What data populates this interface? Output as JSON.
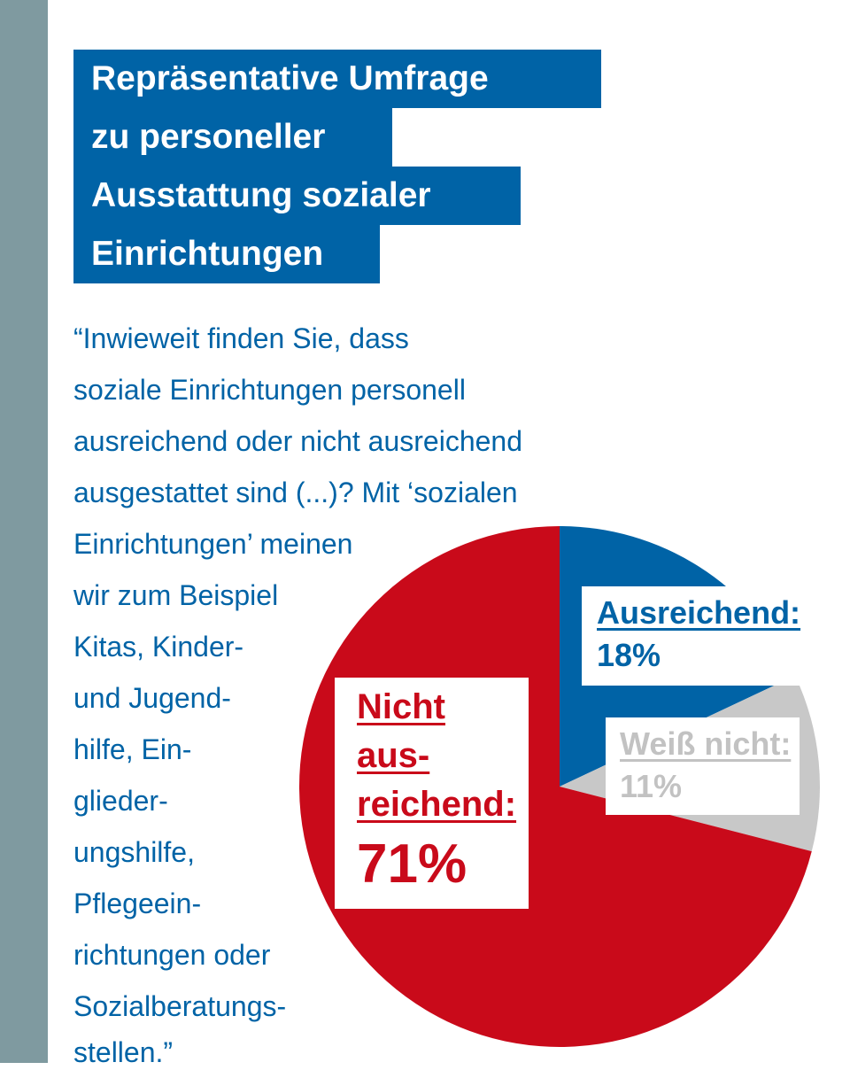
{
  "title_lines": [
    "Repräsentative Umfrage",
    "zu personeller",
    "Ausstattung sozialer",
    "Einrichtungen"
  ],
  "question_lines": [
    "“Inwieweit finden Sie, dass",
    "soziale Einrichtungen personell",
    "ausreichend oder nicht ausreichend",
    "ausgestattet sind (...)? Mit ‘sozialen",
    "Einrichtungen’ meinen",
    "wir zum Beispiel",
    "Kitas, Kinder-",
    "und Jugend-",
    "hilfe, Ein-",
    "glieder-",
    "ungshilfe,",
    "Pflegeein-",
    "richtungen oder",
    "Sozialberatungs-",
    "stellen.”"
  ],
  "labels": {
    "ausreichend_head": "Ausreichend:",
    "ausreichend_value": "18%",
    "weiss_head": "Weiß nicht:",
    "weiss_value": "11%",
    "nicht_head_1": "Nicht",
    "nicht_head_2": "aus-",
    "nicht_head_3": "reichend:",
    "nicht_value": "71%"
  },
  "chart_data": {
    "type": "pie",
    "slices": [
      {
        "label": "Ausreichend",
        "value": 18,
        "color": "#0063a6"
      },
      {
        "label": "Weiß nicht",
        "value": 11,
        "color": "#c8c8c8"
      },
      {
        "label": "Nicht ausreichend",
        "value": 71,
        "color": "#c90a1a"
      }
    ],
    "start_angle": "12 o'clock",
    "direction": "clockwise",
    "legend": "none"
  }
}
